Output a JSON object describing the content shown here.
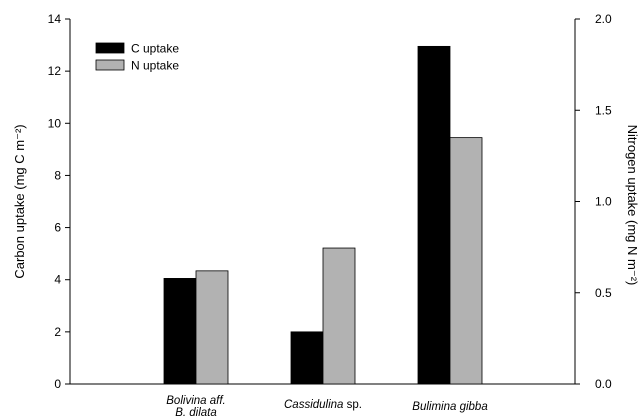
{
  "chart_data": {
    "type": "bar",
    "categories": [
      {
        "lines": [
          "Bolivina aff.",
          "B. dilata"
        ],
        "italic_parts": [
          "Bolivina aff.",
          "B. dilata"
        ]
      },
      {
        "lines": [
          "Cassidulina sp."
        ],
        "italic_parts": [
          "Cassidulina"
        ]
      },
      {
        "lines": [
          "Bulimina gibba"
        ],
        "italic_parts": [
          "Bulimina gibba"
        ]
      }
    ],
    "series": [
      {
        "name": "C uptake",
        "axis": "left",
        "color": "#000000",
        "values": [
          4.05,
          2.0,
          12.95
        ]
      },
      {
        "name": "N uptake",
        "axis": "right",
        "color": "#b2b2b2",
        "values": [
          0.62,
          0.745,
          1.35
        ]
      }
    ],
    "left_axis": {
      "label": "Carbon uptake (mg C m⁻²)",
      "ylim": [
        0,
        14
      ],
      "ticks": [
        "0",
        "2",
        "4",
        "6",
        "8",
        "10",
        "12",
        "14"
      ]
    },
    "right_axis": {
      "label": "Nitrogen uptake (mg N m⁻²)",
      "ylim": [
        0,
        2.0
      ],
      "ticks": [
        "0.0",
        "0.5",
        "1.0",
        "1.5",
        "2.0"
      ]
    },
    "legend": {
      "position": "top-left"
    },
    "grid": false
  }
}
